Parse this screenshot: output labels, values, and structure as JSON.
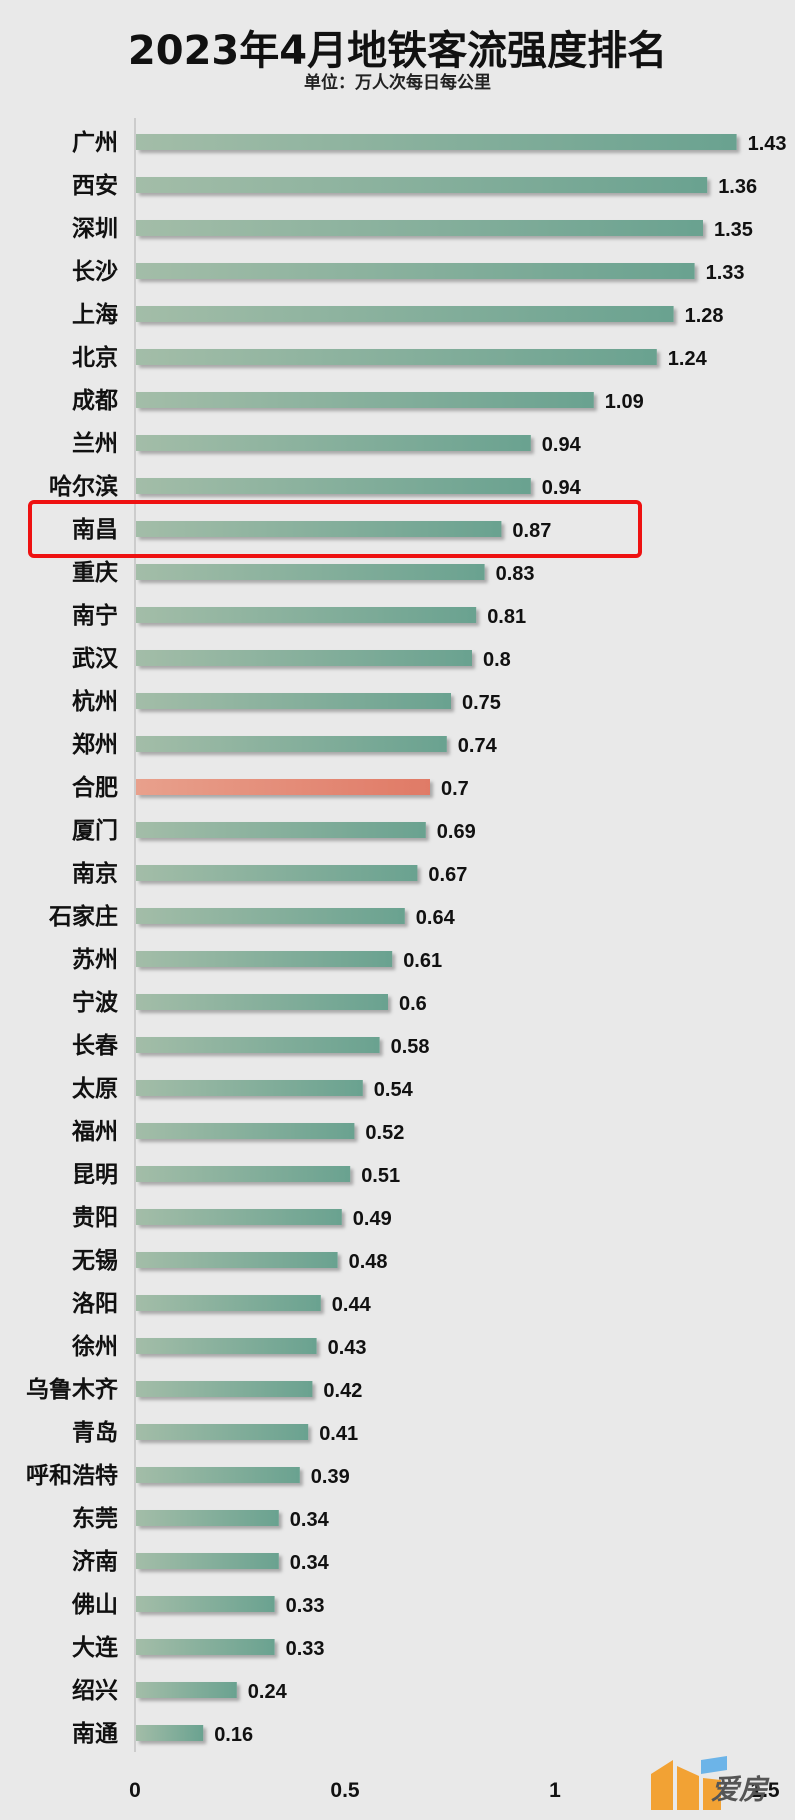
{
  "title": "2023年4月地铁客流强度排名",
  "subtitle": "单位：万人次每日每公里",
  "logo_text": "爱房",
  "chart_data": {
    "type": "bar",
    "orientation": "horizontal",
    "title": "2023年4月地铁客流强度排名",
    "subtitle": "单位：万人次每日每公里",
    "xlim": [
      0,
      1.5
    ],
    "xticks": [
      "0",
      "0.5",
      "1",
      "1.5"
    ],
    "xtick_values": [
      0,
      0.5,
      1,
      1.5
    ],
    "categories": [
      "广州",
      "西安",
      "深圳",
      "长沙",
      "上海",
      "北京",
      "成都",
      "兰州",
      "哈尔滨",
      "南昌",
      "重庆",
      "南宁",
      "武汉",
      "杭州",
      "郑州",
      "合肥",
      "厦门",
      "南京",
      "石家庄",
      "苏州",
      "宁波",
      "长春",
      "太原",
      "福州",
      "昆明",
      "贵阳",
      "无锡",
      "洛阳",
      "徐州",
      "乌鲁木齐",
      "青岛",
      "呼和浩特",
      "东莞",
      "济南",
      "佛山",
      "大连",
      "绍兴",
      "南通"
    ],
    "values": [
      1.43,
      1.36,
      1.35,
      1.33,
      1.28,
      1.24,
      1.09,
      0.94,
      0.94,
      0.87,
      0.83,
      0.81,
      0.8,
      0.75,
      0.74,
      0.7,
      0.69,
      0.67,
      0.64,
      0.61,
      0.6,
      0.58,
      0.54,
      0.52,
      0.51,
      0.49,
      0.48,
      0.44,
      0.43,
      0.42,
      0.41,
      0.39,
      0.34,
      0.34,
      0.33,
      0.33,
      0.24,
      0.16
    ],
    "value_labels": [
      "1.43",
      "1.36",
      "1.35",
      "1.33",
      "1.28",
      "1.24",
      "1.09",
      "0.94",
      "0.94",
      "0.87",
      "0.83",
      "0.81",
      "0.8",
      "0.75",
      "0.74",
      "0.7",
      "0.69",
      "0.67",
      "0.64",
      "0.61",
      "0.6",
      "0.58",
      "0.54",
      "0.52",
      "0.51",
      "0.49",
      "0.48",
      "0.44",
      "0.43",
      "0.42",
      "0.41",
      "0.39",
      "0.34",
      "0.34",
      "0.33",
      "0.33",
      "0.24",
      "0.16"
    ],
    "highlight_bar": "合肥",
    "highlight_box": "南昌",
    "colors": {
      "bar_start": "#a3bda8",
      "bar_end": "#6aa290",
      "highlight_start": "#e8a08c",
      "highlight_end": "#e07a66",
      "highlight_box": "#ee1111",
      "axis": "#cccccc"
    },
    "grid": false,
    "legend": "none"
  }
}
